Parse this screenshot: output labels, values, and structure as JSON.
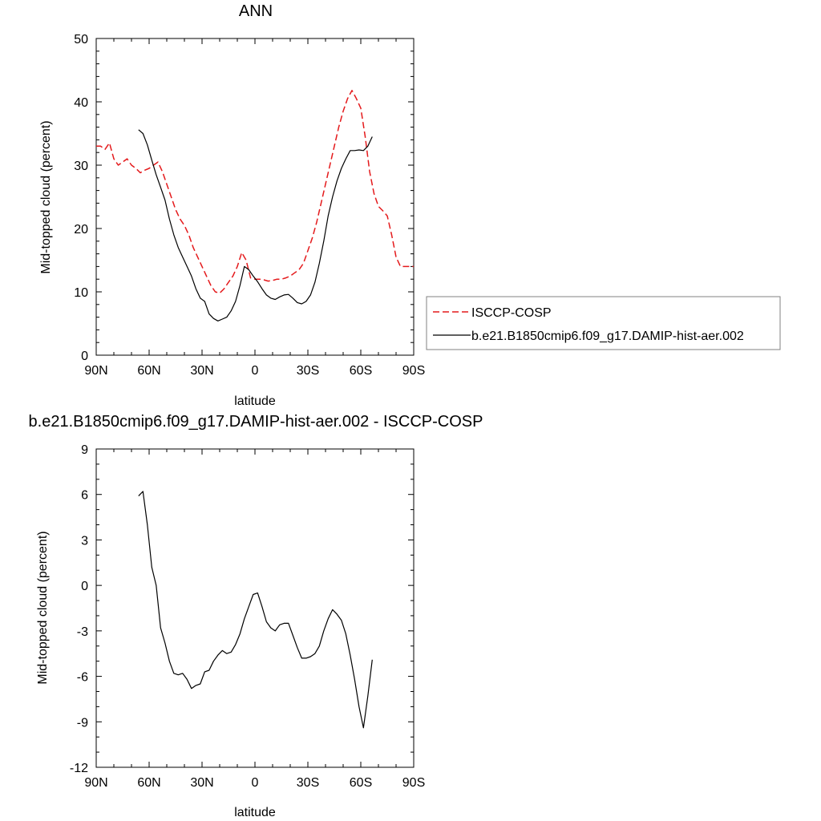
{
  "chart_data": [
    {
      "type": "line",
      "title": "ANN",
      "xlabel": "latitude",
      "ylabel": "Mid-topped cloud (percent)",
      "xlim": [
        90,
        -90
      ],
      "ylim": [
        0,
        50
      ],
      "x_ticks": [
        90,
        60,
        30,
        0,
        -30,
        -60,
        -90
      ],
      "x_tick_labels": [
        "90N",
        "60N",
        "30N",
        "0",
        "30S",
        "60S",
        "90S"
      ],
      "y_ticks": [
        0,
        10,
        20,
        30,
        40,
        50
      ],
      "y_tick_labels": [
        "0",
        "10",
        "20",
        "30",
        "40",
        "50"
      ],
      "legend_position": "right",
      "series": [
        {
          "name": "ISCCP-COSP",
          "color": "#e41a1c",
          "dash": "dashed",
          "x": [
            90,
            87.5,
            85,
            82.5,
            80,
            77.5,
            75,
            72.5,
            70,
            67.5,
            65,
            62.5,
            60,
            57.5,
            55,
            52.5,
            50,
            47.5,
            45,
            42.5,
            40,
            37.5,
            35,
            32.5,
            30,
            27.5,
            25,
            22.5,
            20,
            17.5,
            15,
            12.5,
            10,
            7.5,
            5,
            2.5,
            0,
            -2.5,
            -5,
            -7.5,
            -10,
            -12.5,
            -15,
            -17.5,
            -20,
            -22.5,
            -25,
            -27.5,
            -30,
            -32.5,
            -35,
            -37.5,
            -40,
            -42.5,
            -45,
            -47.5,
            -50,
            -52.5,
            -55,
            -57.5,
            -60,
            -62.5,
            -65,
            -67.5,
            -70,
            -72.5,
            -75,
            -77.5,
            -80,
            -82.5,
            -85,
            -87.5,
            -90
          ],
          "values": [
            33.0,
            33.0,
            32.5,
            33.5,
            31.0,
            30.0,
            30.5,
            31.0,
            30.0,
            29.5,
            28.8,
            29.2,
            29.5,
            30.0,
            30.5,
            29.0,
            27.0,
            25.0,
            23.0,
            21.5,
            20.5,
            19.0,
            17.0,
            15.5,
            14.0,
            12.5,
            11.0,
            10.0,
            9.8,
            10.5,
            11.5,
            12.5,
            14.0,
            16.2,
            15.0,
            12.2,
            12.0,
            12.0,
            11.9,
            11.7,
            11.8,
            12.0,
            12.0,
            12.2,
            12.5,
            13.0,
            13.5,
            14.5,
            16.5,
            18.5,
            21.0,
            24.0,
            27.0,
            30.0,
            33.0,
            36.0,
            38.5,
            40.5,
            41.8,
            40.5,
            39.0,
            34.5,
            29.0,
            25.5,
            23.5,
            22.8,
            22.0,
            19.0,
            15.5,
            14.0,
            14.0,
            14.0,
            14.0
          ]
        },
        {
          "name": "b.e21.B1850cmip6.f09_g17.DAMIP-hist-aer.002",
          "color": "#000000",
          "dash": "solid",
          "x": [
            66,
            63.5,
            61,
            58.5,
            56,
            53.5,
            51,
            48.5,
            46,
            43.5,
            41,
            38.5,
            36,
            33.5,
            31,
            28.5,
            26,
            23.5,
            21,
            18.5,
            16,
            13.5,
            11,
            8.5,
            6,
            3.5,
            1,
            -1.5,
            -4,
            -6.5,
            -9,
            -11.5,
            -14,
            -16.5,
            -19,
            -21.5,
            -24,
            -26.5,
            -29,
            -31.5,
            -34,
            -36.5,
            -39,
            -41.5,
            -44,
            -46.5,
            -49,
            -51.5,
            -54,
            -56.5,
            -59,
            -61.5,
            -64,
            -66.5
          ],
          "values": [
            35.6,
            35.0,
            33.2,
            30.8,
            28.5,
            26.5,
            24.5,
            21.5,
            19.0,
            17.0,
            15.5,
            14.0,
            12.5,
            10.5,
            9.0,
            8.5,
            6.5,
            5.8,
            5.4,
            5.7,
            6.0,
            7.0,
            8.5,
            11.0,
            14.0,
            13.5,
            12.5,
            11.6,
            10.5,
            9.5,
            9.0,
            8.8,
            9.2,
            9.5,
            9.6,
            9.0,
            8.3,
            8.1,
            8.5,
            9.5,
            11.5,
            14.5,
            18.0,
            22.0,
            25.0,
            27.5,
            29.5,
            31.0,
            32.3,
            32.3,
            32.4,
            32.3,
            33.0,
            34.5
          ]
        }
      ]
    },
    {
      "type": "line",
      "title": "b.e21.B1850cmip6.f09_g17.DAMIP-hist-aer.002 - ISCCP-COSP",
      "xlabel": "latitude",
      "ylabel": "Mid-topped cloud (percent)",
      "xlim": [
        90,
        -90
      ],
      "ylim": [
        -12,
        9
      ],
      "x_ticks": [
        90,
        60,
        30,
        0,
        -30,
        -60,
        -90
      ],
      "x_tick_labels": [
        "90N",
        "60N",
        "30N",
        "0",
        "30S",
        "60S",
        "90S"
      ],
      "y_ticks": [
        -12,
        -9,
        -6,
        -3,
        0,
        3,
        6,
        9
      ],
      "y_tick_labels": [
        "-12",
        "-9",
        "-6",
        "-3",
        "0",
        "3",
        "6",
        "9"
      ],
      "series": [
        {
          "color": "#000000",
          "dash": "solid",
          "x": [
            66,
            63.5,
            61,
            58.5,
            56,
            53.5,
            51,
            48.5,
            46,
            43.5,
            41,
            38.5,
            36,
            33.5,
            31,
            28.5,
            26,
            23.5,
            21,
            18.5,
            16,
            13.5,
            11,
            8.5,
            6,
            3.5,
            1,
            -1.5,
            -4,
            -6.5,
            -9,
            -11.5,
            -14,
            -16.5,
            -19,
            -21.5,
            -24,
            -26.5,
            -29,
            -31.5,
            -34,
            -36.5,
            -39,
            -41.5,
            -44,
            -46.5,
            -49,
            -51.5,
            -54,
            -56.5,
            -59,
            -61.5,
            -64,
            -66.5
          ],
          "values": [
            5.9,
            6.2,
            4.0,
            1.2,
            0.0,
            -2.8,
            -3.8,
            -5.0,
            -5.8,
            -5.9,
            -5.8,
            -6.2,
            -6.8,
            -6.6,
            -6.5,
            -5.7,
            -5.6,
            -5.0,
            -4.6,
            -4.3,
            -4.5,
            -4.4,
            -3.9,
            -3.2,
            -2.2,
            -1.4,
            -0.6,
            -0.5,
            -1.4,
            -2.4,
            -2.8,
            -3.0,
            -2.6,
            -2.5,
            -2.5,
            -3.3,
            -4.1,
            -4.8,
            -4.8,
            -4.7,
            -4.5,
            -4.0,
            -3.0,
            -2.2,
            -1.6,
            -1.9,
            -2.3,
            -3.2,
            -4.6,
            -6.2,
            -8.0,
            -9.4,
            -7.3,
            -4.9
          ]
        }
      ]
    }
  ]
}
